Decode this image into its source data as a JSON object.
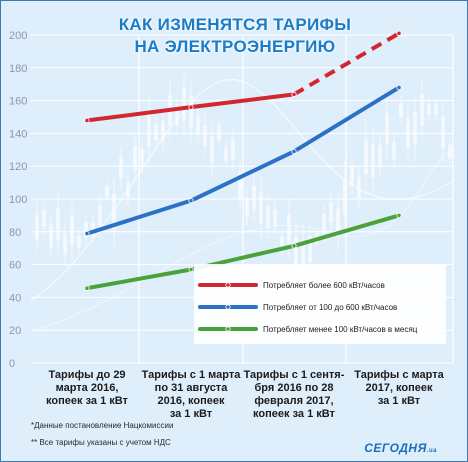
{
  "chart_data": {
    "type": "line",
    "title": "КАК ИЗМЕНЯТСЯ ТАРИФЫ",
    "subtitle": "НА ЭЛЕКТРОЭНЕРГИЮ",
    "xlabel": "",
    "ylabel": "",
    "ylim": [
      0,
      200
    ],
    "yticks": [
      "0",
      "20",
      "40",
      "60",
      "80",
      "100",
      "120",
      "140",
      "160",
      "180",
      "200"
    ],
    "categories": [
      "Тарифы до 29 марта 2016, копеек за 1 кВт",
      "Тарифы с 1 марта по 31 августа 2016, копеек за 1 кВт",
      "Тарифы с 1 сентя-брЯ 2016 по 28 февраля 2017, копеек за 1 кВт",
      "Тарифы с марта 2017, копеек за 1 кВт"
    ],
    "series": [
      {
        "name": "Потребляет более 600 кВт/часов",
        "color": "#d22630",
        "values": [
          147.9,
          156.0,
          163.8,
          201.0
        ],
        "projected_from_index": 2
      },
      {
        "name": "Потребляет от 100 до 600 кВт/часов",
        "color": "#2b71c6",
        "values": [
          78.9,
          99.0,
          129.0,
          168.0
        ]
      },
      {
        "name": "Потребляет менее 100 кВт/часов в месяц",
        "color": "#4aa23a",
        "values": [
          45.6,
          57.0,
          71.4,
          90.0
        ]
      }
    ],
    "grid": true,
    "legend_position": "center-right"
  },
  "xcat_lines": [
    [
      "Тарифы до 29",
      "марта 2016,",
      "копеек за 1 кВт"
    ],
    [
      "Тарифы с 1 марта",
      "по 31 августа",
      "2016, копеек",
      "за 1 кВт"
    ],
    [
      "Тарифы с 1 сентя-",
      "бря 2016 по 28",
      "февраля 2017,",
      "копеек за 1 кВт"
    ],
    [
      "Тарифы с марта",
      "2017, копеек",
      "за 1 кВт"
    ]
  ],
  "notes": {
    "source": "*Данные постановление Нацкомиссии",
    "vat": "** Все тарифы указаны с учетом НДС"
  },
  "brand": {
    "name": "СЕГОДНЯ",
    "suffix": ".ua"
  }
}
